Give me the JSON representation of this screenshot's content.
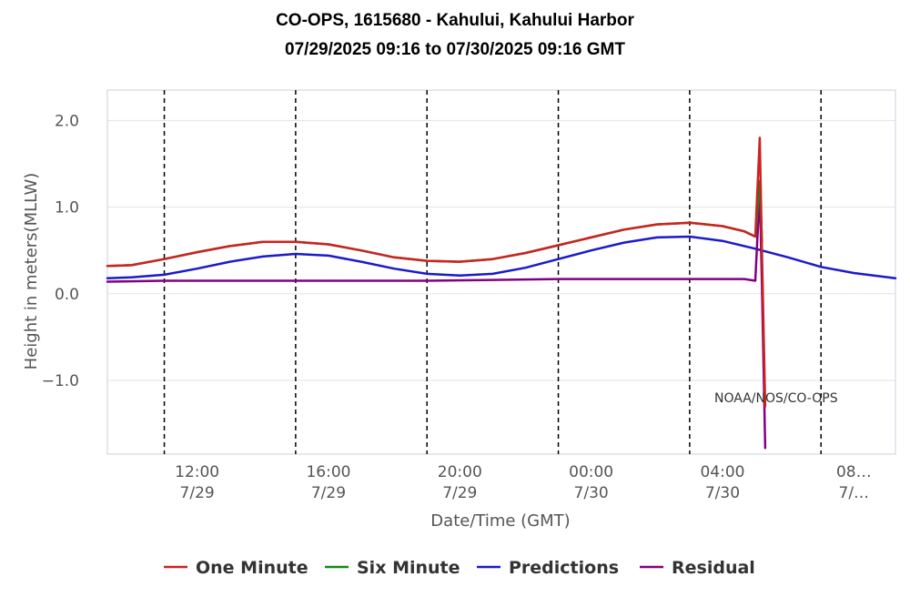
{
  "chart_data": {
    "type": "line",
    "title": "CO-OPS, 1615680 - Kahului, Kahului Harbor",
    "subtitle": "07/29/2025 09:16 to 07/30/2025 09:16 GMT",
    "xlabel": "Date/Time (GMT)",
    "ylabel": "Height in meters(MLLW)",
    "xlim": [
      "2025-07-29 09:16",
      "2025-07-30 09:16"
    ],
    "ylim": [
      -1.85,
      2.35
    ],
    "y_ticks": [
      "2.0",
      "1.0",
      "0.0",
      "−1.0"
    ],
    "y_tick_values": [
      2.0,
      1.0,
      0.0,
      -1.0
    ],
    "x_ticks": [
      {
        "line1": "12:00",
        "line2": "7/29",
        "at": "2025-07-29 12:00"
      },
      {
        "line1": "16:00",
        "line2": "7/29",
        "at": "2025-07-29 16:00"
      },
      {
        "line1": "20:00",
        "line2": "7/29",
        "at": "2025-07-29 20:00"
      },
      {
        "line1": "00:00",
        "line2": "7/30",
        "at": "2025-07-30 00:00"
      },
      {
        "line1": "04:00",
        "line2": "7/30",
        "at": "2025-07-30 04:00"
      },
      {
        "line1": "08…",
        "line2": "7/…",
        "at": "2025-07-30 08:00"
      }
    ],
    "vertical_dashed_lines": [
      "2025-07-29 11:00",
      "2025-07-29 15:00",
      "2025-07-29 19:00",
      "2025-07-29 23:00",
      "2025-07-30 03:00",
      "2025-07-30 07:00"
    ],
    "grid": true,
    "legend_position": "bottom",
    "annotation": "NOAA/NOS/CO-OPS",
    "series": [
      {
        "name": "One Minute",
        "color": "#cc2222",
        "x": [
          "2025-07-29 09:16",
          "2025-07-29 10:00",
          "2025-07-29 11:00",
          "2025-07-29 12:00",
          "2025-07-29 13:00",
          "2025-07-29 14:00",
          "2025-07-29 15:00",
          "2025-07-29 16:00",
          "2025-07-29 17:00",
          "2025-07-29 18:00",
          "2025-07-29 19:00",
          "2025-07-29 20:00",
          "2025-07-29 21:00",
          "2025-07-29 22:00",
          "2025-07-29 23:00",
          "2025-07-30 00:00",
          "2025-07-30 01:00",
          "2025-07-30 02:00",
          "2025-07-30 03:00",
          "2025-07-30 04:00",
          "2025-07-30 04:40",
          "2025-07-30 05:00",
          "2025-07-30 05:08",
          "2025-07-30 05:12",
          "2025-07-30 05:18"
        ],
        "y": [
          0.32,
          0.33,
          0.4,
          0.48,
          0.55,
          0.6,
          0.6,
          0.57,
          0.5,
          0.42,
          0.38,
          0.37,
          0.4,
          0.47,
          0.56,
          0.65,
          0.74,
          0.8,
          0.82,
          0.78,
          0.72,
          0.66,
          1.8,
          0.5,
          -1.3
        ]
      },
      {
        "name": "Six Minute",
        "color": "#138a13",
        "x": [
          "2025-07-29 09:16",
          "2025-07-29 10:00",
          "2025-07-29 11:00",
          "2025-07-29 12:00",
          "2025-07-29 13:00",
          "2025-07-29 14:00",
          "2025-07-29 15:00",
          "2025-07-29 16:00",
          "2025-07-29 17:00",
          "2025-07-29 18:00",
          "2025-07-29 19:00",
          "2025-07-29 20:00",
          "2025-07-29 21:00",
          "2025-07-29 22:00",
          "2025-07-29 23:00",
          "2025-07-30 00:00",
          "2025-07-30 01:00",
          "2025-07-30 02:00",
          "2025-07-30 03:00",
          "2025-07-30 04:00",
          "2025-07-30 04:40",
          "2025-07-30 05:00",
          "2025-07-30 05:08",
          "2025-07-30 05:12"
        ],
        "y": [
          0.32,
          0.33,
          0.4,
          0.48,
          0.55,
          0.6,
          0.6,
          0.57,
          0.5,
          0.42,
          0.38,
          0.37,
          0.4,
          0.47,
          0.56,
          0.65,
          0.74,
          0.8,
          0.82,
          0.78,
          0.72,
          0.66,
          1.3,
          0.6
        ]
      },
      {
        "name": "Predictions",
        "color": "#1a1acc",
        "x": [
          "2025-07-29 09:16",
          "2025-07-29 10:00",
          "2025-07-29 11:00",
          "2025-07-29 12:00",
          "2025-07-29 13:00",
          "2025-07-29 14:00",
          "2025-07-29 15:00",
          "2025-07-29 16:00",
          "2025-07-29 17:00",
          "2025-07-29 18:00",
          "2025-07-29 19:00",
          "2025-07-29 20:00",
          "2025-07-29 21:00",
          "2025-07-29 22:00",
          "2025-07-29 23:00",
          "2025-07-30 00:00",
          "2025-07-30 01:00",
          "2025-07-30 02:00",
          "2025-07-30 03:00",
          "2025-07-30 04:00",
          "2025-07-30 05:00",
          "2025-07-30 06:00",
          "2025-07-30 07:00",
          "2025-07-30 08:00",
          "2025-07-30 09:16"
        ],
        "y": [
          0.18,
          0.19,
          0.22,
          0.29,
          0.37,
          0.43,
          0.46,
          0.44,
          0.37,
          0.29,
          0.23,
          0.21,
          0.23,
          0.3,
          0.4,
          0.5,
          0.59,
          0.65,
          0.66,
          0.61,
          0.52,
          0.42,
          0.31,
          0.24,
          0.18
        ]
      },
      {
        "name": "Residual",
        "color": "#800080",
        "x": [
          "2025-07-29 09:16",
          "2025-07-29 11:00",
          "2025-07-29 13:00",
          "2025-07-29 15:00",
          "2025-07-29 17:00",
          "2025-07-29 19:00",
          "2025-07-29 21:00",
          "2025-07-29 23:00",
          "2025-07-30 01:00",
          "2025-07-30 03:00",
          "2025-07-30 04:40",
          "2025-07-30 05:00",
          "2025-07-30 05:08",
          "2025-07-30 05:12",
          "2025-07-30 05:18"
        ],
        "y": [
          0.14,
          0.15,
          0.15,
          0.15,
          0.15,
          0.15,
          0.16,
          0.17,
          0.17,
          0.17,
          0.17,
          0.15,
          1.2,
          0.1,
          -1.78
        ]
      }
    ]
  }
}
